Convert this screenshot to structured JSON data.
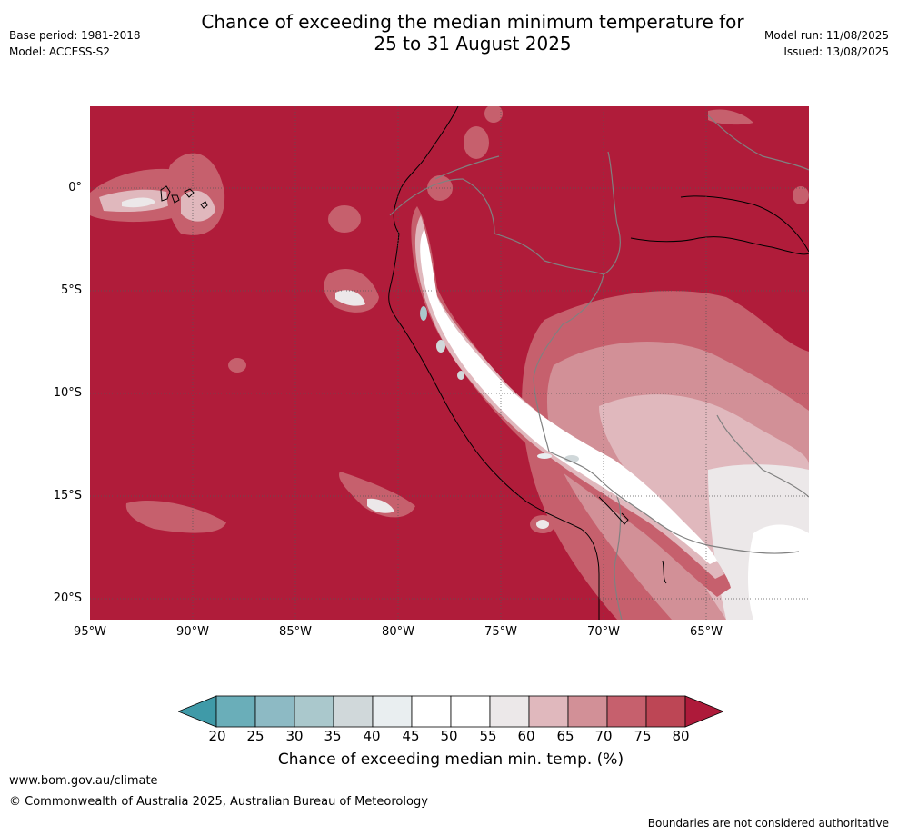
{
  "title": {
    "line1": "Chance of exceeding the median minimum temperature for",
    "line2": "25 to 31 August 2025"
  },
  "meta": {
    "base_period": "Base period: 1981-2018",
    "model": "Model: ACCESS-S2",
    "model_run": "Model run: 11/08/2025",
    "issued": "Issued: 13/08/2025"
  },
  "map": {
    "lat_labels": [
      "0°",
      "5°S",
      "10°S",
      "15°S",
      "20°S"
    ],
    "lon_labels": [
      "95°W",
      "90°W",
      "85°W",
      "80°W",
      "75°W",
      "70°W",
      "65°W"
    ],
    "lat_range": [
      -21.0,
      4.0
    ],
    "lon_range": [
      -95.0,
      -60.0
    ],
    "gridlines": "dotted",
    "dominant_category": "80+",
    "colors": {
      "ocean_high": "#b01c3a",
      "land_border": "#808080",
      "coastline": "#000000"
    }
  },
  "colorbar": {
    "ticks": [
      "20",
      "25",
      "30",
      "35",
      "40",
      "45",
      "50",
      "55",
      "60",
      "65",
      "70",
      "75",
      "80"
    ],
    "colors": [
      "#3f9aa8",
      "#6aaeb9",
      "#8dbac4",
      "#aac8cc",
      "#d0d8da",
      "#e9eef0",
      "#ffffff",
      "#ffffff",
      "#ece8e9",
      "#e0b8bd",
      "#d29097",
      "#c6606d",
      "#bd4655",
      "#ae1a3a"
    ],
    "label": "Chance of exceeding median min. temp. (%)"
  },
  "footer": {
    "url": "www.bom.gov.au/climate",
    "copyright": "© Commonwealth of Australia 2025, Australian Bureau of Meteorology",
    "disclaimer": "Boundaries are not considered authoritative"
  }
}
